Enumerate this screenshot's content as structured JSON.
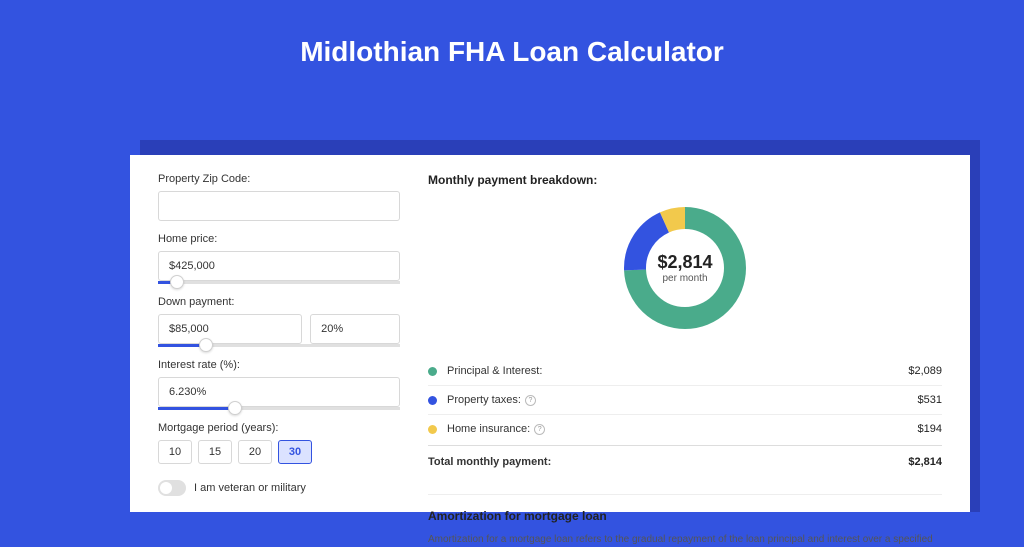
{
  "page": {
    "title": "Midlothian FHA Loan Calculator",
    "bg_color": "#3353e0",
    "shadow_color": "#2a3fb8"
  },
  "form": {
    "zip": {
      "label": "Property Zip Code:",
      "value": ""
    },
    "home_price": {
      "label": "Home price:",
      "value": "$425,000",
      "slider_pct": 8
    },
    "down_payment": {
      "label": "Down payment:",
      "value": "$85,000",
      "pct_value": "20%",
      "slider_pct": 20
    },
    "interest": {
      "label": "Interest rate (%):",
      "value": "6.230%",
      "slider_pct": 32
    },
    "mortgage_period": {
      "label": "Mortgage period (years):",
      "options": [
        "10",
        "15",
        "20",
        "30"
      ],
      "selected": "30"
    },
    "veteran": {
      "label": "I am veteran or military",
      "value": false
    }
  },
  "breakdown": {
    "title": "Monthly payment breakdown:",
    "amount": "$2,814",
    "amount_sub": "per month",
    "donut": {
      "radius": 50,
      "stroke": 22,
      "segments": [
        {
          "color": "#4aab8b",
          "value": 2089
        },
        {
          "color": "#3353e0",
          "value": 531
        },
        {
          "color": "#f2c94c",
          "value": 194
        }
      ],
      "total": 2814
    },
    "items": [
      {
        "color": "#4aab8b",
        "label": "Principal & Interest:",
        "value": "$2,089",
        "info": false
      },
      {
        "color": "#3353e0",
        "label": "Property taxes:",
        "value": "$531",
        "info": true
      },
      {
        "color": "#f2c94c",
        "label": "Home insurance:",
        "value": "$194",
        "info": true
      }
    ],
    "total_label": "Total monthly payment:",
    "total_value": "$2,814"
  },
  "amortization": {
    "title": "Amortization for mortgage loan",
    "text": "Amortization for a mortgage loan refers to the gradual repayment of the loan principal and interest over a specified"
  }
}
